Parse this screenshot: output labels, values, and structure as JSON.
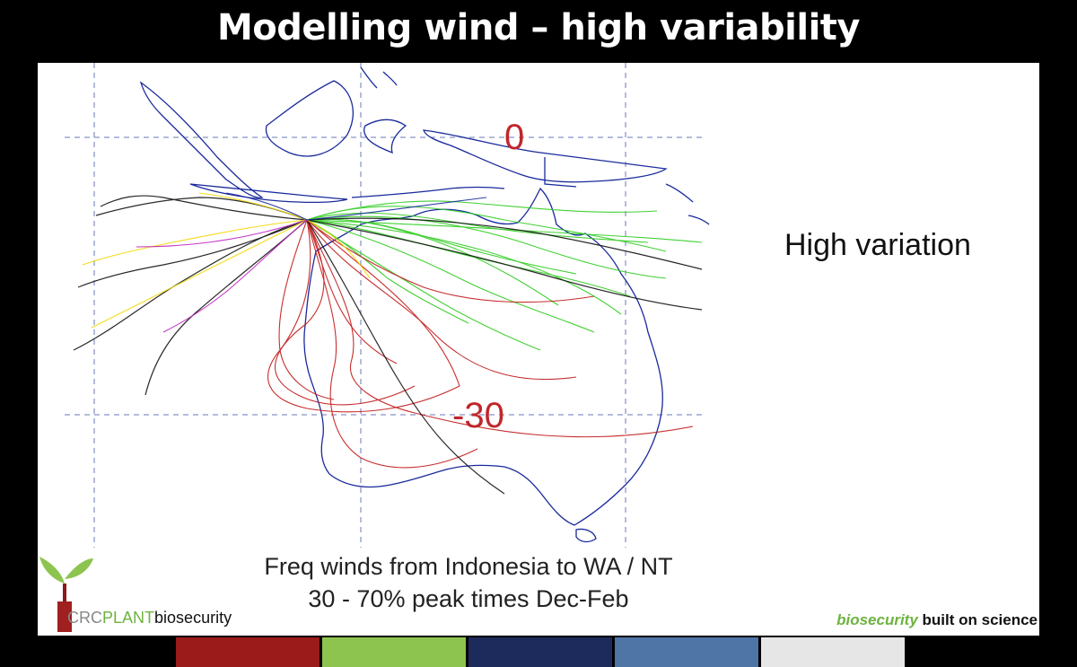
{
  "slide": {
    "title": "Modelling wind – high variability",
    "side_note": "High variation",
    "caption": {
      "line1": "Freq winds from Indonesia to WA / NT",
      "line2": "30 - 70% peak times Dec-Feb"
    }
  },
  "map": {
    "latitude_labels": {
      "equator": "0",
      "south": "-30"
    },
    "label_color": "#c0262c",
    "coast_color": "#1a2a9c",
    "grid_color": "#6a7ab8",
    "trajectory_colors": [
      "#2ecc1f",
      "#c21818",
      "#111111",
      "#f5d800",
      "#c024c0",
      "#1a2a9c"
    ]
  },
  "logo": {
    "crc": "CRC",
    "plant": "PLANT",
    "biosecurity": "biosecurity"
  },
  "tagline": {
    "italic": "biosecurity",
    "bold": " built on science"
  },
  "color_strip": [
    "#9b1b1b",
    "#8dc44f",
    "#1d2a5c",
    "#4f74a6",
    "#e6e6e6"
  ]
}
